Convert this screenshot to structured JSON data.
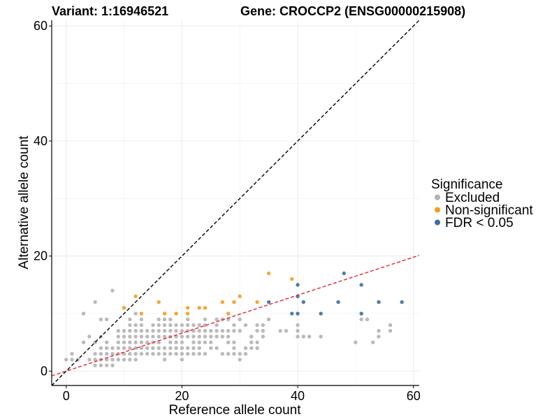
{
  "chart_data": {
    "type": "scatter",
    "title_left": "Variant: 1:16946521",
    "title_right": "Gene: CROCCP2 (ENSG00000215908)",
    "xlabel": "Reference allele count",
    "ylabel": "Alternative allele count",
    "xlim": [
      -2.5,
      61
    ],
    "ylim": [
      -2.5,
      61
    ],
    "xticks": [
      0,
      20,
      40,
      60
    ],
    "yticks": [
      0,
      20,
      40,
      60
    ],
    "grid": true,
    "legend": {
      "title": "Significance",
      "position": "right",
      "entries": [
        {
          "label": "Excluded",
          "color": "#b2b2b2"
        },
        {
          "label": "Non-significant",
          "color": "#f39c1f"
        },
        {
          "label": "FDR < 0.05",
          "color": "#3c6fa0"
        }
      ]
    },
    "reference_lines": [
      {
        "name": "identity",
        "slope": 1,
        "intercept": 0,
        "color": "#000000",
        "dash": "dashed"
      },
      {
        "name": "fit",
        "slope": 0.33,
        "intercept": 0,
        "color": "#e8232a",
        "dash": "dashed"
      }
    ],
    "series": [
      {
        "name": "Excluded",
        "color": "#b2b2b2",
        "points": [
          [
            0,
            2
          ],
          [
            1,
            2
          ],
          [
            1,
            3
          ],
          [
            2,
            2
          ],
          [
            3,
            5
          ],
          [
            3,
            10
          ],
          [
            4,
            2
          ],
          [
            4,
            6
          ],
          [
            5,
            1
          ],
          [
            5,
            2
          ],
          [
            5,
            3
          ],
          [
            5,
            5
          ],
          [
            5,
            12
          ],
          [
            6,
            1
          ],
          [
            6,
            2
          ],
          [
            6,
            3
          ],
          [
            6,
            4
          ],
          [
            6,
            6
          ],
          [
            6,
            9
          ],
          [
            7,
            1
          ],
          [
            7,
            2
          ],
          [
            7,
            3
          ],
          [
            7,
            4
          ],
          [
            7,
            5
          ],
          [
            7,
            9
          ],
          [
            8,
            1
          ],
          [
            8,
            2
          ],
          [
            8,
            3
          ],
          [
            8,
            4
          ],
          [
            8,
            14
          ],
          [
            9,
            2
          ],
          [
            9,
            3
          ],
          [
            9,
            4
          ],
          [
            9,
            5
          ],
          [
            9,
            6
          ],
          [
            9,
            7
          ],
          [
            10,
            2
          ],
          [
            10,
            3
          ],
          [
            10,
            4
          ],
          [
            10,
            5
          ],
          [
            10,
            6
          ],
          [
            10,
            7
          ],
          [
            11,
            2
          ],
          [
            11,
            3
          ],
          [
            11,
            4
          ],
          [
            11,
            5
          ],
          [
            11,
            6
          ],
          [
            11,
            7
          ],
          [
            11,
            8
          ],
          [
            11,
            9
          ],
          [
            12,
            2
          ],
          [
            12,
            3
          ],
          [
            12,
            4
          ],
          [
            12,
            5
          ],
          [
            12,
            6
          ],
          [
            12,
            7
          ],
          [
            12,
            8
          ],
          [
            12,
            10
          ],
          [
            13,
            3
          ],
          [
            13,
            4
          ],
          [
            13,
            5
          ],
          [
            13,
            6
          ],
          [
            13,
            7
          ],
          [
            13,
            8
          ],
          [
            13,
            9
          ],
          [
            14,
            3
          ],
          [
            14,
            4
          ],
          [
            14,
            5
          ],
          [
            14,
            6
          ],
          [
            14,
            7
          ],
          [
            15,
            3
          ],
          [
            15,
            4
          ],
          [
            15,
            5
          ],
          [
            15,
            6
          ],
          [
            15,
            7
          ],
          [
            15,
            8
          ],
          [
            16,
            3
          ],
          [
            16,
            4
          ],
          [
            16,
            5
          ],
          [
            16,
            6
          ],
          [
            16,
            7
          ],
          [
            16,
            8
          ],
          [
            16,
            9
          ],
          [
            17,
            2
          ],
          [
            17,
            3
          ],
          [
            17,
            4
          ],
          [
            17,
            6
          ],
          [
            17,
            7
          ],
          [
            17,
            8
          ],
          [
            17,
            9
          ],
          [
            18,
            3
          ],
          [
            18,
            4
          ],
          [
            18,
            5
          ],
          [
            18,
            6
          ],
          [
            18,
            7
          ],
          [
            18,
            8
          ],
          [
            18,
            9
          ],
          [
            19,
            3
          ],
          [
            19,
            4
          ],
          [
            19,
            5
          ],
          [
            19,
            6
          ],
          [
            19,
            7
          ],
          [
            19,
            8
          ],
          [
            20,
            2
          ],
          [
            20,
            3
          ],
          [
            20,
            4
          ],
          [
            20,
            5
          ],
          [
            20,
            6
          ],
          [
            20,
            7
          ],
          [
            20,
            8
          ],
          [
            21,
            3
          ],
          [
            21,
            4
          ],
          [
            21,
            6
          ],
          [
            21,
            7
          ],
          [
            21,
            8
          ],
          [
            21,
            9
          ],
          [
            22,
            3
          ],
          [
            22,
            4
          ],
          [
            22,
            5
          ],
          [
            22,
            6
          ],
          [
            22,
            7
          ],
          [
            22,
            8
          ],
          [
            23,
            3
          ],
          [
            23,
            4
          ],
          [
            23,
            5
          ],
          [
            23,
            6
          ],
          [
            23,
            7
          ],
          [
            23,
            8
          ],
          [
            24,
            3
          ],
          [
            24,
            5
          ],
          [
            24,
            6
          ],
          [
            24,
            7
          ],
          [
            24,
            8
          ],
          [
            24,
            9
          ],
          [
            25,
            4
          ],
          [
            25,
            5
          ],
          [
            25,
            6
          ],
          [
            25,
            7
          ],
          [
            26,
            4
          ],
          [
            26,
            6
          ],
          [
            26,
            7
          ],
          [
            26,
            8
          ],
          [
            26,
            9
          ],
          [
            27,
            3
          ],
          [
            27,
            6
          ],
          [
            27,
            7
          ],
          [
            27,
            9
          ],
          [
            28,
            3
          ],
          [
            28,
            5
          ],
          [
            28,
            6
          ],
          [
            28,
            7
          ],
          [
            28,
            9
          ],
          [
            29,
            3
          ],
          [
            29,
            4
          ],
          [
            29,
            5
          ],
          [
            29,
            7
          ],
          [
            29,
            8
          ],
          [
            30,
            2
          ],
          [
            30,
            3
          ],
          [
            30,
            7
          ],
          [
            30,
            9
          ],
          [
            31,
            3
          ],
          [
            31,
            4
          ],
          [
            31,
            8
          ],
          [
            32,
            4
          ],
          [
            32,
            5
          ],
          [
            32,
            6
          ],
          [
            33,
            4
          ],
          [
            33,
            5
          ],
          [
            33,
            7
          ],
          [
            33,
            8
          ],
          [
            34,
            6
          ],
          [
            34,
            7
          ],
          [
            34,
            8
          ],
          [
            35,
            9
          ],
          [
            37,
            7
          ],
          [
            38,
            7
          ],
          [
            40,
            6
          ],
          [
            40,
            7
          ],
          [
            40,
            8
          ],
          [
            41,
            6
          ],
          [
            42,
            6
          ],
          [
            44,
            6
          ],
          [
            50,
            5
          ],
          [
            51,
            9
          ],
          [
            52,
            9
          ],
          [
            53,
            5
          ],
          [
            54,
            6
          ],
          [
            54,
            7
          ],
          [
            56,
            7
          ],
          [
            56,
            8
          ]
        ]
      },
      {
        "name": "Non-significant",
        "color": "#f39c1f",
        "points": [
          [
            10,
            11
          ],
          [
            12,
            13
          ],
          [
            13,
            10
          ],
          [
            16,
            12
          ],
          [
            17,
            10
          ],
          [
            19,
            10
          ],
          [
            21,
            10
          ],
          [
            21,
            11
          ],
          [
            23,
            11
          ],
          [
            24,
            11
          ],
          [
            27,
            12
          ],
          [
            28,
            10
          ],
          [
            29,
            12
          ],
          [
            30,
            13
          ],
          [
            33,
            12
          ],
          [
            35,
            17
          ],
          [
            39,
            16
          ]
        ]
      },
      {
        "name": "FDR < 0.05",
        "color": "#3c6fa0",
        "points": [
          [
            35,
            12
          ],
          [
            39,
            10
          ],
          [
            40,
            10
          ],
          [
            40,
            13
          ],
          [
            40,
            15
          ],
          [
            41,
            12
          ],
          [
            44,
            10
          ],
          [
            47,
            12
          ],
          [
            48,
            17
          ],
          [
            51,
            10
          ],
          [
            51,
            15
          ],
          [
            54,
            12
          ],
          [
            58,
            12
          ]
        ]
      }
    ]
  }
}
